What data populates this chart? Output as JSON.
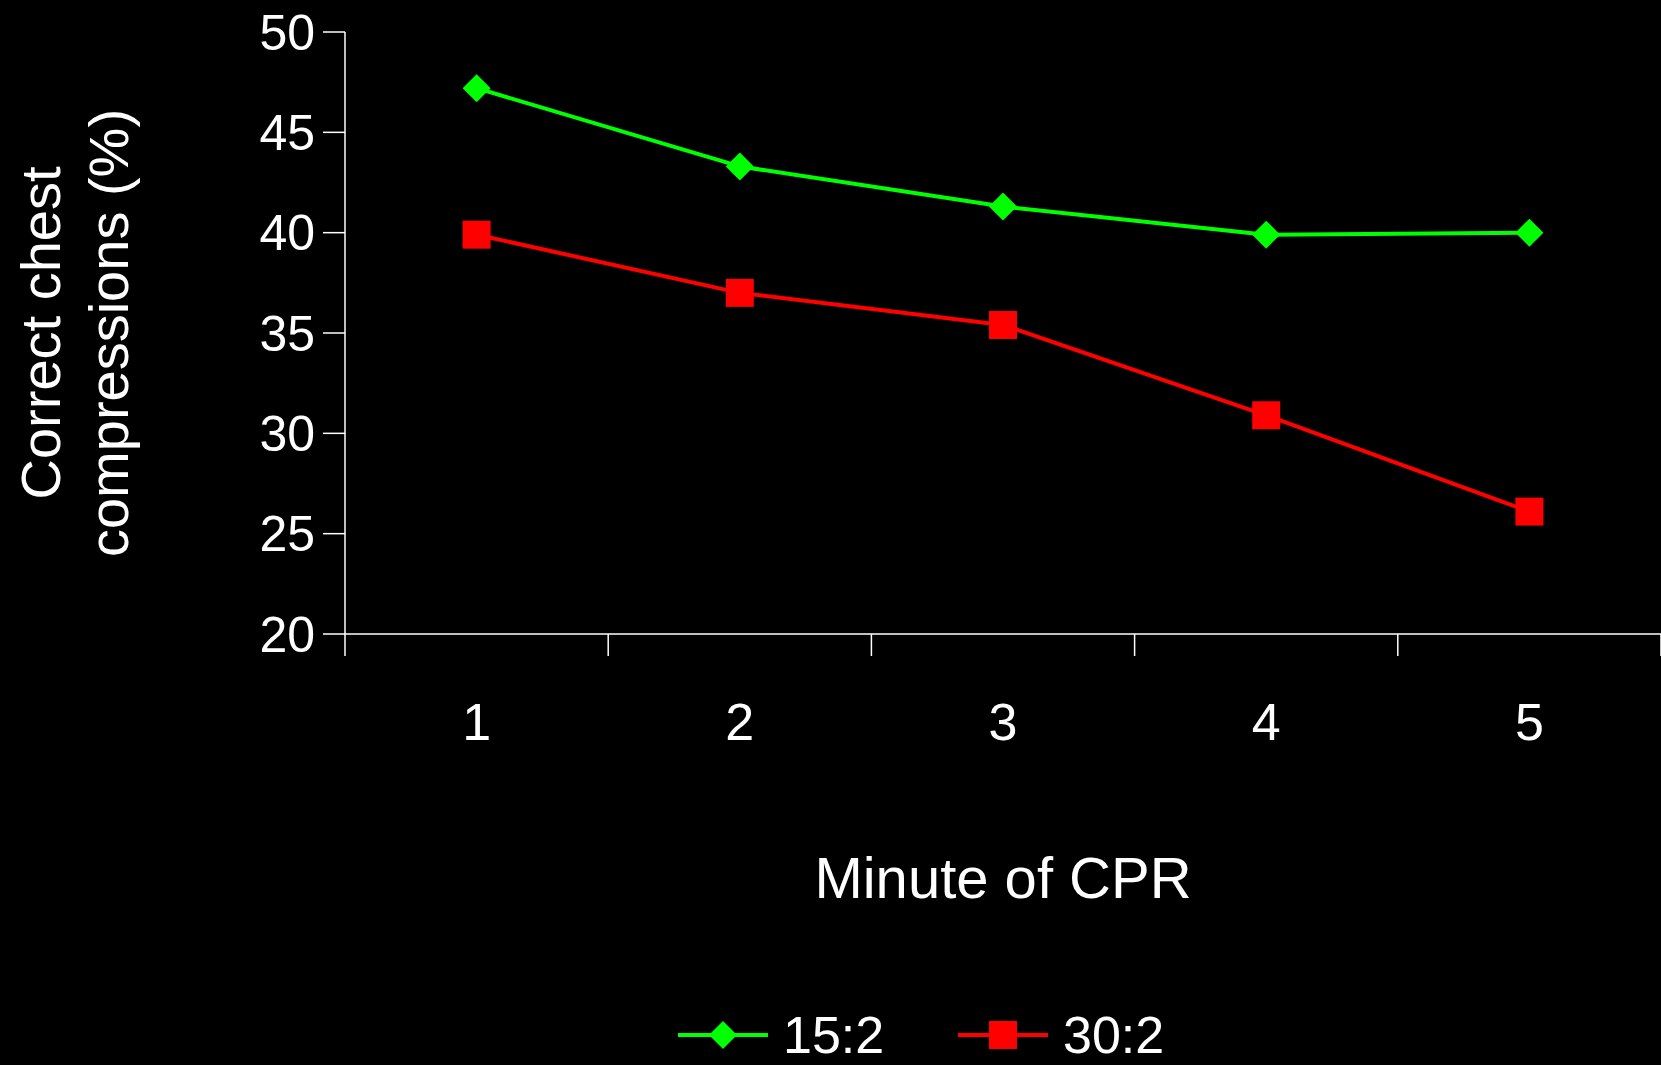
{
  "chart_data": {
    "type": "line",
    "xlabel": "Minute of CPR",
    "ylabel": "Correct chest compressions (%)",
    "categories": [
      "1",
      "2",
      "3",
      "4",
      "5"
    ],
    "series": [
      {
        "name": "15:2",
        "color": "#00ff00",
        "marker": "diamond",
        "values": [
          47.2,
          43.3,
          41.3,
          39.9,
          40.0
        ]
      },
      {
        "name": "30:2",
        "color": "#ff0000",
        "marker": "square",
        "values": [
          39.9,
          37.0,
          35.4,
          30.9,
          26.1
        ]
      }
    ],
    "ylim": [
      20,
      50
    ],
    "yticks": [
      20,
      25,
      30,
      35,
      40,
      45,
      50
    ],
    "grid": false,
    "legend": "bottom"
  }
}
